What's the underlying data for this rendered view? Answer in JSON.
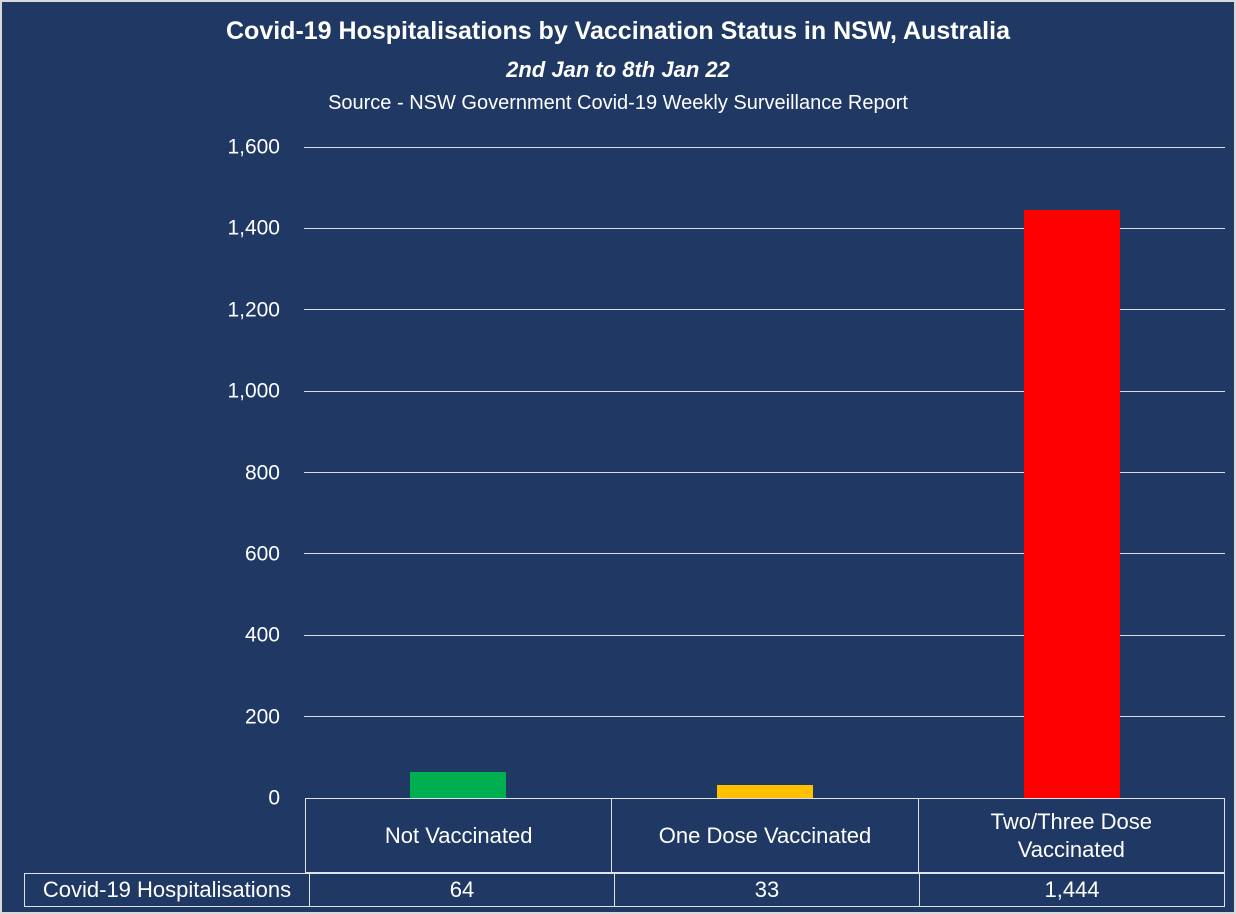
{
  "chart_data": {
    "type": "bar",
    "title": "Covid-19 Hospitalisations by Vaccination Status in NSW, Australia",
    "subtitle": "2nd Jan to 8th Jan 22",
    "source": "Source - NSW Government Covid-19 Weekly Surveillance Report",
    "categories": [
      "Not Vaccinated",
      "One Dose Vaccinated",
      "Two/Three Dose Vaccinated"
    ],
    "series": [
      {
        "name": "Covid-19 Hospitalisations",
        "values": [
          64,
          33,
          1444
        ]
      }
    ],
    "bar_colors": [
      "#00B050",
      "#FFC000",
      "#FF0000"
    ],
    "ylim": [
      0,
      1600
    ],
    "ytick_interval": 200,
    "ytick_labels": [
      "1,600",
      "1,400",
      "1,200",
      "1,000",
      "800",
      "600",
      "400",
      "200",
      "0"
    ],
    "grid": true,
    "legend_position": "none",
    "table": {
      "row_label": "Covid-19 Hospitalisations",
      "values": [
        "64",
        "33",
        "1,444"
      ]
    }
  },
  "colors": {
    "background": "#1F3864",
    "frame_border": "#D9D9D9",
    "gridline": "#D8DBE2",
    "table_border": "#DEE3EA",
    "text": "#FFFFFF",
    "bar_not_vaccinated": "#00B050",
    "bar_one_dose": "#FFC000",
    "bar_two_three_dose": "#FF0000"
  }
}
